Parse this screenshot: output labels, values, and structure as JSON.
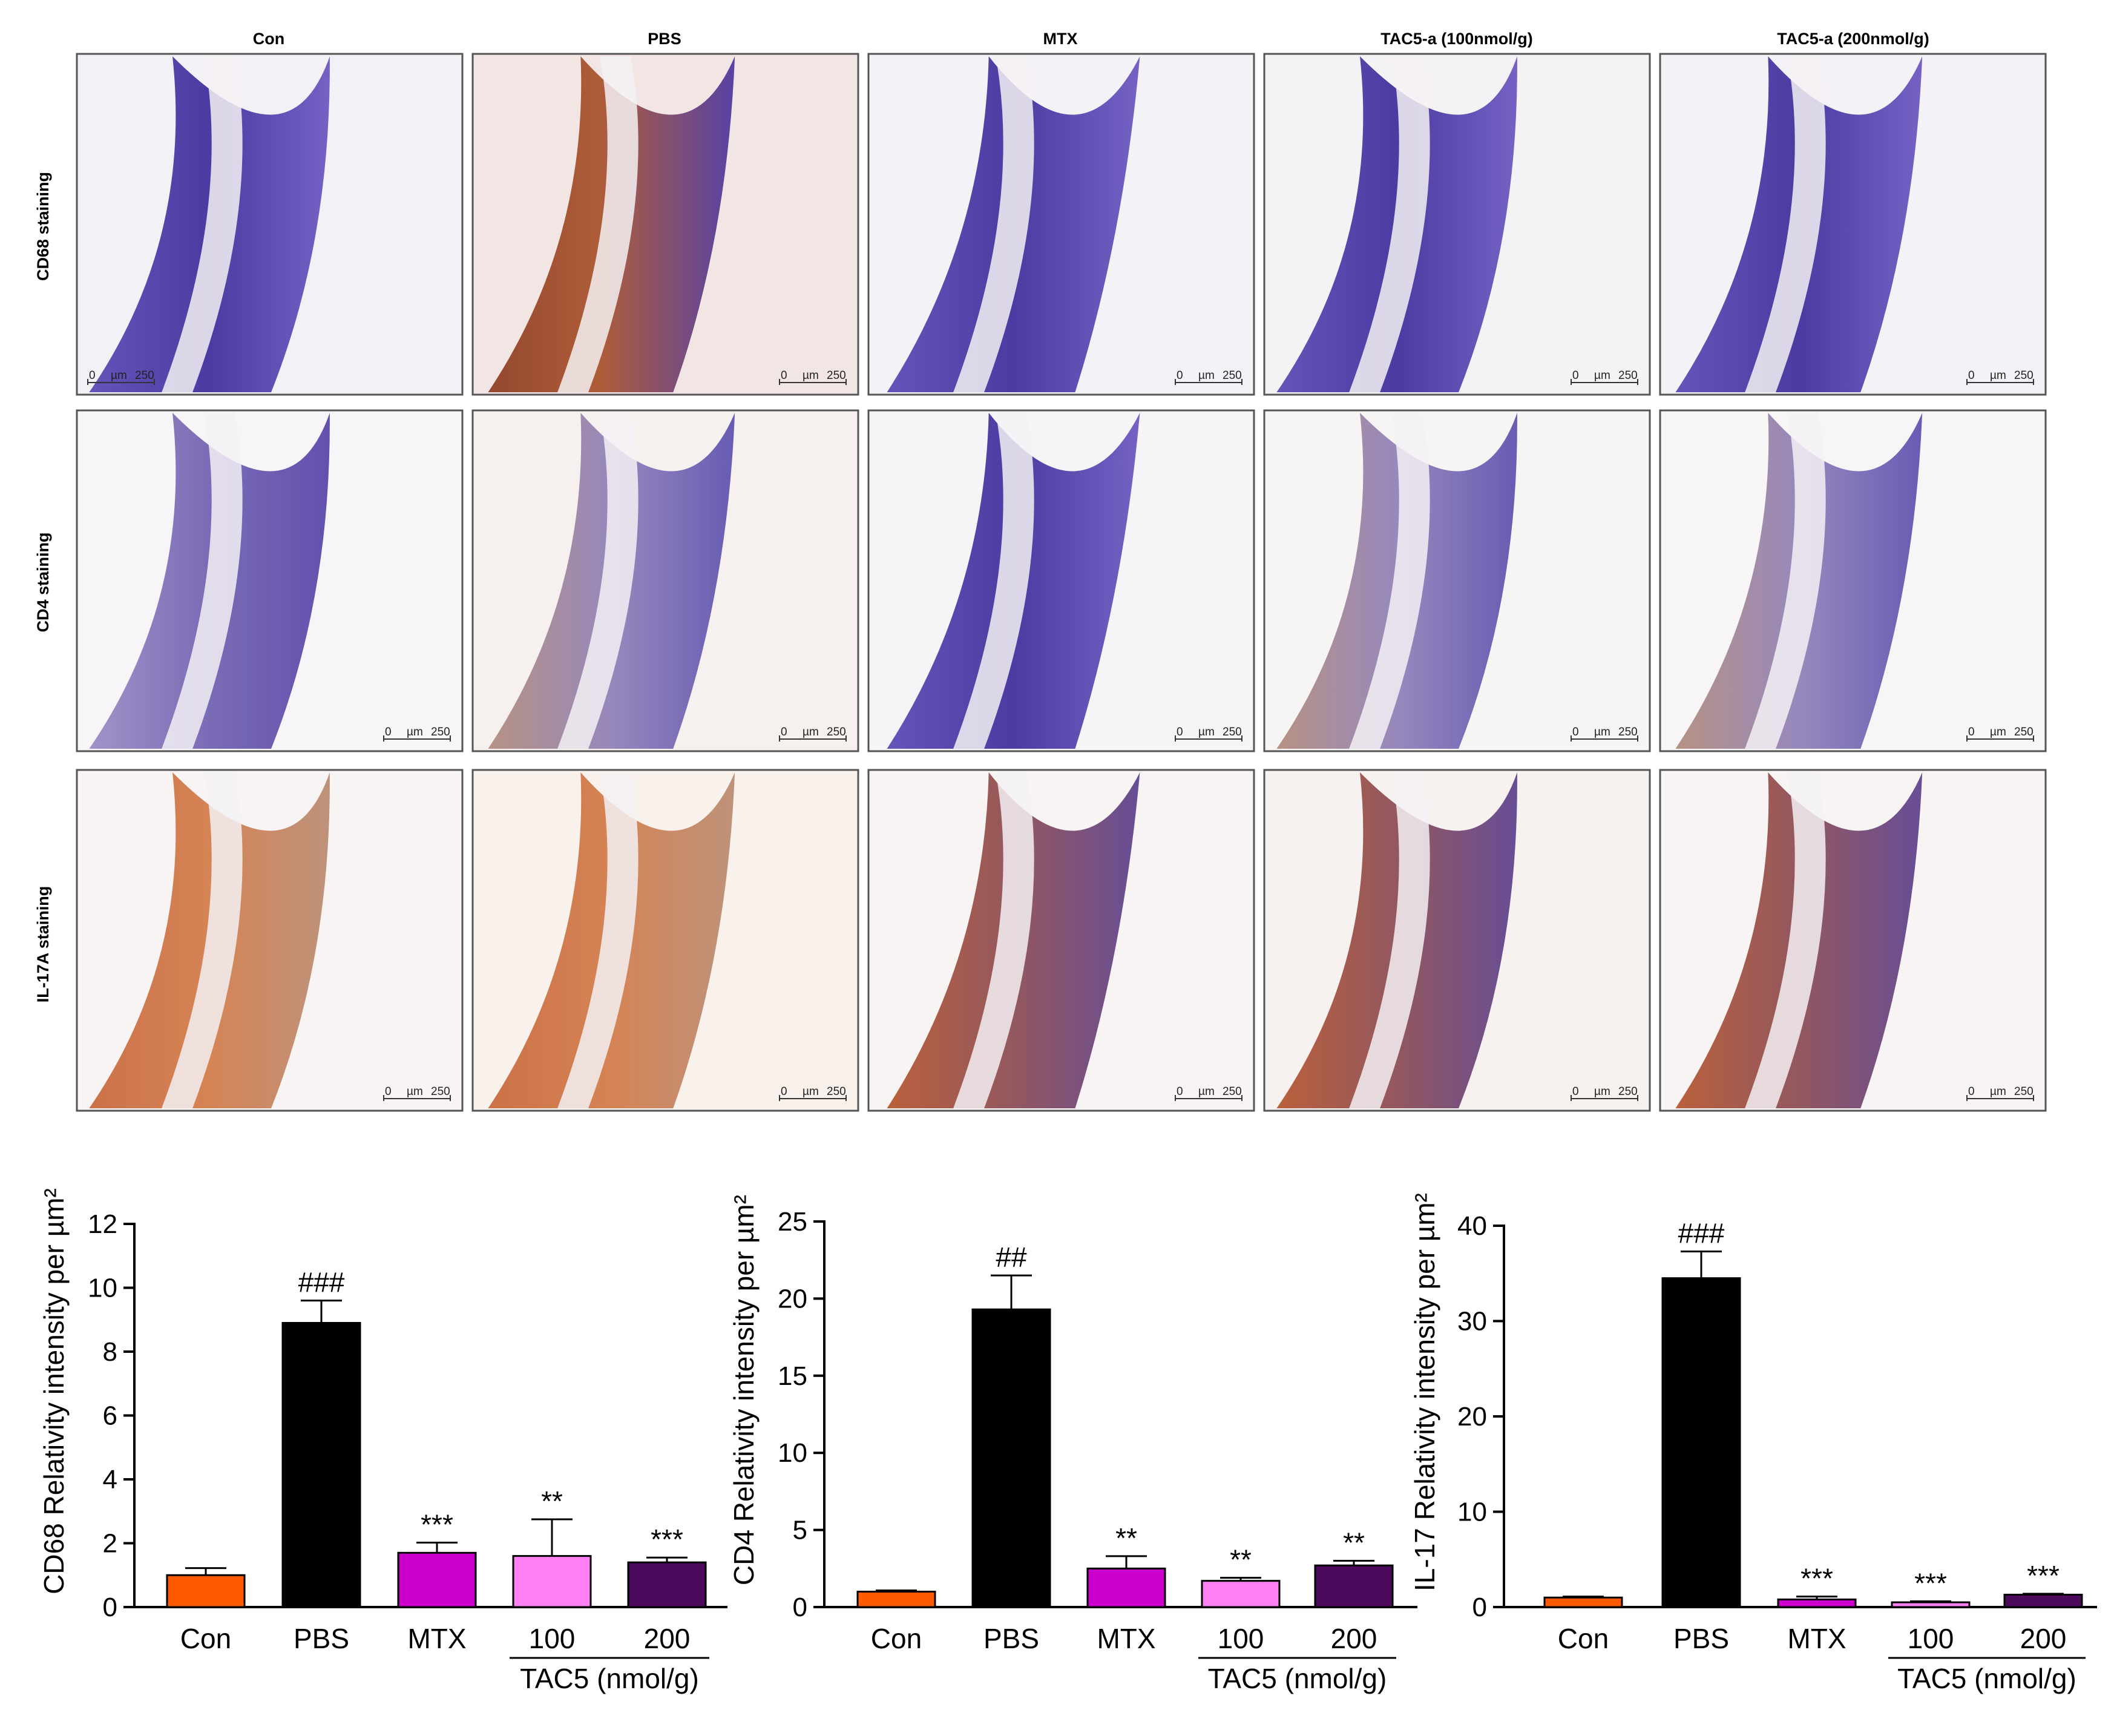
{
  "micrographs": {
    "columns": [
      "Con",
      "PBS",
      "MTX",
      "TAC5-a (100nmol/g)",
      "TAC5-a (200nmol/g)"
    ],
    "rows": [
      "CD68 staining",
      "CD4 staining",
      "IL-17A staining"
    ],
    "scale_bar": {
      "zero": "0",
      "unit": "µm",
      "value": "250"
    }
  },
  "chart_data": [
    {
      "type": "bar",
      "categories": [
        "Con",
        "PBS",
        "MTX",
        "100",
        "200"
      ],
      "group_label": "TAC5 (nmol/g)",
      "ylabel": "CD68 Relativity intensity per µm²",
      "ylim": [
        0,
        12
      ],
      "yticks": [
        0,
        2,
        4,
        6,
        8,
        10,
        12
      ],
      "values": [
        1.0,
        8.9,
        1.7,
        1.6,
        1.4
      ],
      "errors": [
        0.22,
        0.7,
        0.32,
        1.15,
        0.15
      ],
      "significance": [
        "",
        "###",
        "***",
        "**",
        "***"
      ],
      "colors": [
        "#ff5a00",
        "#000000",
        "#cc00cc",
        "#ff80f2",
        "#4d0a5c"
      ]
    },
    {
      "type": "bar",
      "categories": [
        "Con",
        "PBS",
        "MTX",
        "100",
        "200"
      ],
      "group_label": "TAC5 (nmol/g)",
      "ylabel": "CD4 Relativity intensity per µm²",
      "ylim": [
        0,
        25
      ],
      "yticks": [
        0,
        5,
        10,
        15,
        20,
        25
      ],
      "values": [
        1.0,
        19.3,
        2.5,
        1.7,
        2.7
      ],
      "errors": [
        0.08,
        2.2,
        0.8,
        0.2,
        0.3
      ],
      "significance": [
        "",
        "##",
        "**",
        "**",
        "**"
      ],
      "colors": [
        "#ff5a00",
        "#000000",
        "#cc00cc",
        "#ff80f2",
        "#4d0a5c"
      ]
    },
    {
      "type": "bar",
      "categories": [
        "Con",
        "PBS",
        "MTX",
        "100",
        "200"
      ],
      "group_label": "TAC5 (nmol/g)",
      "ylabel": "IL-17 Relativity intensity per µm²",
      "ylim": [
        0,
        40
      ],
      "yticks": [
        0,
        10,
        20,
        30,
        40
      ],
      "values": [
        1.0,
        34.5,
        0.8,
        0.5,
        1.3
      ],
      "errors": [
        0.1,
        2.8,
        0.3,
        0.1,
        0.1
      ],
      "significance": [
        "",
        "###",
        "***",
        "***",
        "***"
      ],
      "colors": [
        "#ff5a00",
        "#000000",
        "#cc00cc",
        "#ff80f2",
        "#4d0a5c"
      ]
    }
  ]
}
